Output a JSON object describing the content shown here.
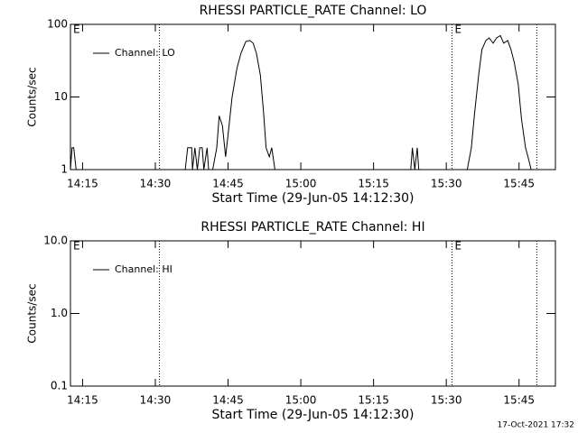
{
  "chart_data": [
    {
      "type": "line",
      "title": "RHESSI PARTICLE_RATE Channel: LO",
      "xlabel": "Start Time (29-Jun-05 14:12:30)",
      "ylabel": "Counts/sec",
      "xlim": [
        "14:12:30",
        "15:52:30"
      ],
      "xticks": [
        "14:15",
        "14:30",
        "14:45",
        "15:00",
        "15:15",
        "15:30",
        "15:45"
      ],
      "ylim": [
        1,
        100
      ],
      "yticks": [
        1,
        10,
        100
      ],
      "log": true,
      "legend": "upper left",
      "vlines": [
        "14:30:50",
        "15:31:10",
        "15:48:40"
      ],
      "annotations": [
        {
          "x": "14:12:30",
          "text": "E"
        },
        {
          "x": "15:31:10",
          "text": "E"
        }
      ],
      "series": [
        {
          "name": "Channel: LO",
          "color": "#000000",
          "x": [
            "14:12:30",
            "14:12:50",
            "14:13:10",
            "14:13:40",
            "14:36:10",
            "14:36:40",
            "14:37:30",
            "14:37:40",
            "14:38:10",
            "14:38:40",
            "14:39:10",
            "14:39:40",
            "14:40:00",
            "14:40:40",
            "14:41:00",
            "14:41:50",
            "14:42:40",
            "14:43:10",
            "14:43:50",
            "14:44:30",
            "14:45:00",
            "14:45:50",
            "14:46:50",
            "14:47:40",
            "14:48:40",
            "14:49:30",
            "14:50:10",
            "14:50:50",
            "14:51:40",
            "14:52:20",
            "14:52:50",
            "14:53:30",
            "14:54:00",
            "14:54:40",
            "14:55:20",
            "15:22:40",
            "15:23:00",
            "15:23:30",
            "15:24:00",
            "15:24:20",
            "15:34:20",
            "15:35:10",
            "15:35:50",
            "15:36:40",
            "15:37:20",
            "15:38:10",
            "15:38:50",
            "15:39:40",
            "15:40:20",
            "15:41:10",
            "15:41:50",
            "15:42:40",
            "15:43:20",
            "15:44:00",
            "15:44:50",
            "15:45:30",
            "15:46:20",
            "15:46:50",
            "15:47:30",
            "15:52:30"
          ],
          "values": [
            1,
            2,
            2,
            1,
            1,
            2,
            2,
            1,
            2,
            1,
            2,
            2,
            1,
            2,
            1,
            1,
            2,
            5.5,
            4,
            1.5,
            3,
            10,
            25,
            40,
            58,
            60,
            55,
            40,
            20,
            6,
            2,
            1.5,
            2,
            1,
            1,
            1,
            2,
            1,
            2,
            1,
            1,
            2,
            6,
            20,
            45,
            60,
            65,
            55,
            65,
            70,
            55,
            60,
            45,
            30,
            15,
            5,
            2,
            1.5,
            1,
            1
          ]
        }
      ]
    },
    {
      "type": "line",
      "title": "RHESSI PARTICLE_RATE Channel: HI",
      "xlabel": "Start Time (29-Jun-05 14:12:30)",
      "ylabel": "Counts/sec",
      "xlim": [
        "14:12:30",
        "15:52:30"
      ],
      "xticks": [
        "14:15",
        "14:30",
        "14:45",
        "15:00",
        "15:15",
        "15:30",
        "15:45"
      ],
      "ylim": [
        0.1,
        10
      ],
      "yticks": [
        0.1,
        {
          "value": 1,
          "label": "1.0"
        },
        {
          "value": 10,
          "label": "10.0"
        }
      ],
      "log": true,
      "legend": "upper left",
      "vlines": [
        "14:30:50",
        "15:31:10",
        "15:48:40"
      ],
      "annotations": [
        {
          "x": "14:12:30",
          "text": "E"
        },
        {
          "x": "15:31:10",
          "text": "E"
        }
      ],
      "series": [
        {
          "name": "Channel: HI",
          "color": "#000000",
          "x": [],
          "values": []
        }
      ]
    }
  ],
  "footer": "17-Oct-2021 17:32"
}
